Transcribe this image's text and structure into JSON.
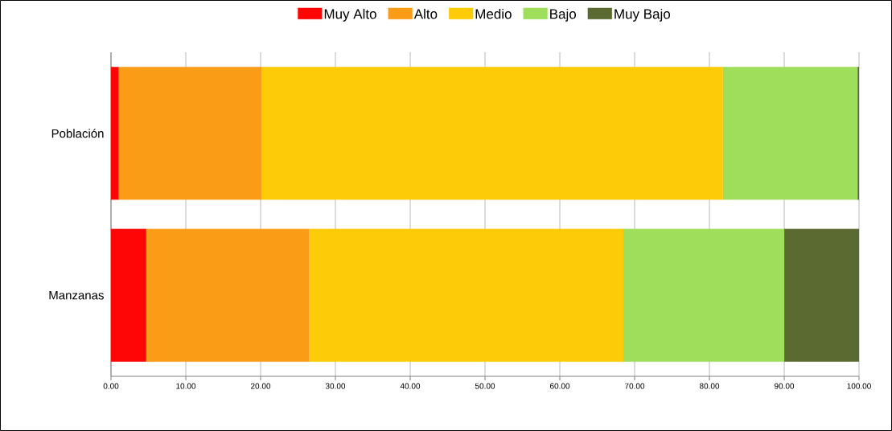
{
  "chart_data": {
    "type": "bar",
    "orientation": "horizontal",
    "stacked": true,
    "categories": [
      "Población",
      "Manzanas"
    ],
    "series": [
      {
        "name": "Muy Alto",
        "color": "#fe0606",
        "values": [
          1.0,
          4.7
        ]
      },
      {
        "name": "Alto",
        "color": "#fb9c17",
        "values": [
          19.1,
          21.8
        ]
      },
      {
        "name": "Medio",
        "color": "#fdcb07",
        "values": [
          61.7,
          42.0
        ]
      },
      {
        "name": "Bajo",
        "color": "#9ede5a",
        "values": [
          18.0,
          21.5
        ]
      },
      {
        "name": "Muy Bajo",
        "color": "#5a6a30",
        "values": [
          0.2,
          10.0
        ]
      }
    ],
    "xlim": [
      0,
      100
    ],
    "xticks": [
      {
        "value": 0,
        "label": "0.00"
      },
      {
        "value": 10,
        "label": "10.00"
      },
      {
        "value": 20,
        "label": "20.00"
      },
      {
        "value": 30,
        "label": "30.00"
      },
      {
        "value": 40,
        "label": "40.00"
      },
      {
        "value": 50,
        "label": "50.00"
      },
      {
        "value": 60,
        "label": "60.00"
      },
      {
        "value": 70,
        "label": "70.00"
      },
      {
        "value": 80,
        "label": "80.00"
      },
      {
        "value": 90,
        "label": "90.00"
      },
      {
        "value": 100,
        "label": "100.00"
      }
    ],
    "grid": "x",
    "legend": "top"
  }
}
